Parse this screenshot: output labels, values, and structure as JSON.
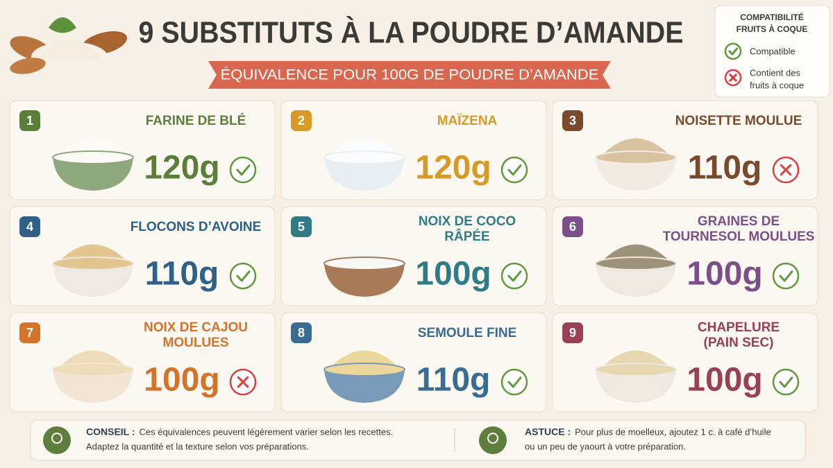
{
  "header": {
    "title": "9 SUBSTITUTS À LA POUDRE D’AMANDE",
    "subtitle": "ÉQUIVALENCE POUR 100G DE POUDRE D’AMANDE"
  },
  "legend": {
    "title": [
      "COMPATIBILITÉ",
      "FRUITS À COQUE"
    ],
    "compatible": [
      "Compatible"
    ],
    "contains": [
      "Contient des",
      "fruits à coque"
    ]
  },
  "cards": [
    {
      "number": "1",
      "name": [
        "FARINE DE BLÉ"
      ],
      "amount": "120g",
      "compatible": true,
      "color": "#5b7f3b"
    },
    {
      "number": "2",
      "name": [
        "MAÏZENA"
      ],
      "amount": "120g",
      "compatible": true,
      "color": "#d89a26"
    },
    {
      "number": "3",
      "name": [
        "NOISETTE MOULUE"
      ],
      "amount": "110g",
      "compatible": false,
      "color": "#7a4a2c"
    },
    {
      "number": "4",
      "name": [
        "FLOCONS D’AVOINE"
      ],
      "amount": "110g",
      "compatible": true,
      "color": "#2f6088"
    },
    {
      "number": "5",
      "name": [
        "NOIX DE COCO",
        "RÂPÉE"
      ],
      "amount": "100g",
      "compatible": true,
      "color": "#2f7c87"
    },
    {
      "number": "6",
      "name": [
        "GRAINES DE",
        "TOURNESOL MOULUES"
      ],
      "amount": "100g",
      "compatible": true,
      "color": "#7a4f8a"
    },
    {
      "number": "7",
      "name": [
        "NOIX DE CAJOU",
        "MOULUES"
      ],
      "amount": "100g",
      "compatible": false,
      "color": "#d4742a"
    },
    {
      "number": "8",
      "name": [
        "SEMOULE FINE"
      ],
      "amount": "110g",
      "compatible": true,
      "color": "#3a6c93"
    },
    {
      "number": "9",
      "name": [
        "CHAPELURE",
        "(PAIN SEC)"
      ],
      "amount": "100g",
      "compatible": true,
      "color": "#9a4055"
    }
  ],
  "footer": {
    "tips": [
      {
        "label": "CONSEIL :",
        "lines": [
          "Ces équivalences peuvent légèrement varier selon les recettes.",
          "Adaptez la quantité et la texture selon vos préparations."
        ]
      },
      {
        "label": "ASTUCE :",
        "lines": [
          "Pour plus de moelleux, ajoutez 1 c. à café d’huile",
          "ou un peu de yaourt à votre préparation."
        ]
      }
    ]
  }
}
